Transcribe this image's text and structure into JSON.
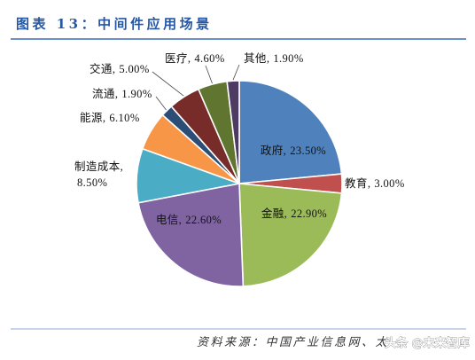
{
  "figure": {
    "source": "资料来源：中国产业信息网、太",
    "watermark": "头条 @未来智库"
  },
  "chart_data": {
    "type": "pie",
    "title": "图表 13：中间件应用场景",
    "label_separator": ",",
    "slices": [
      {
        "name": "政府",
        "value": 23.5,
        "value_text": "23.50%",
        "color": "#4F81BD"
      },
      {
        "name": "教育",
        "value": 3.0,
        "value_text": "3.00%",
        "color": "#C0504D"
      },
      {
        "name": "金融",
        "value": 22.9,
        "value_text": "22.90%",
        "color": "#9BBB59"
      },
      {
        "name": "电信",
        "value": 22.6,
        "value_text": "22.60%",
        "color": "#8064A2"
      },
      {
        "name": "制造成本",
        "value": 8.5,
        "value_text": "8.50%",
        "color": "#4BACC6"
      },
      {
        "name": "能源",
        "value": 6.1,
        "value_text": "6.10%",
        "color": "#F79646"
      },
      {
        "name": "流通",
        "value": 1.9,
        "value_text": "1.90%",
        "color": "#2C4D75"
      },
      {
        "name": "交通",
        "value": 5.0,
        "value_text": "5.00%",
        "color": "#772C2A"
      },
      {
        "name": "医疗",
        "value": 4.6,
        "value_text": "4.60%",
        "color": "#5F7530"
      },
      {
        "name": "其他",
        "value": 1.9,
        "value_text": "1.90%",
        "color": "#4D3B62"
      }
    ]
  }
}
